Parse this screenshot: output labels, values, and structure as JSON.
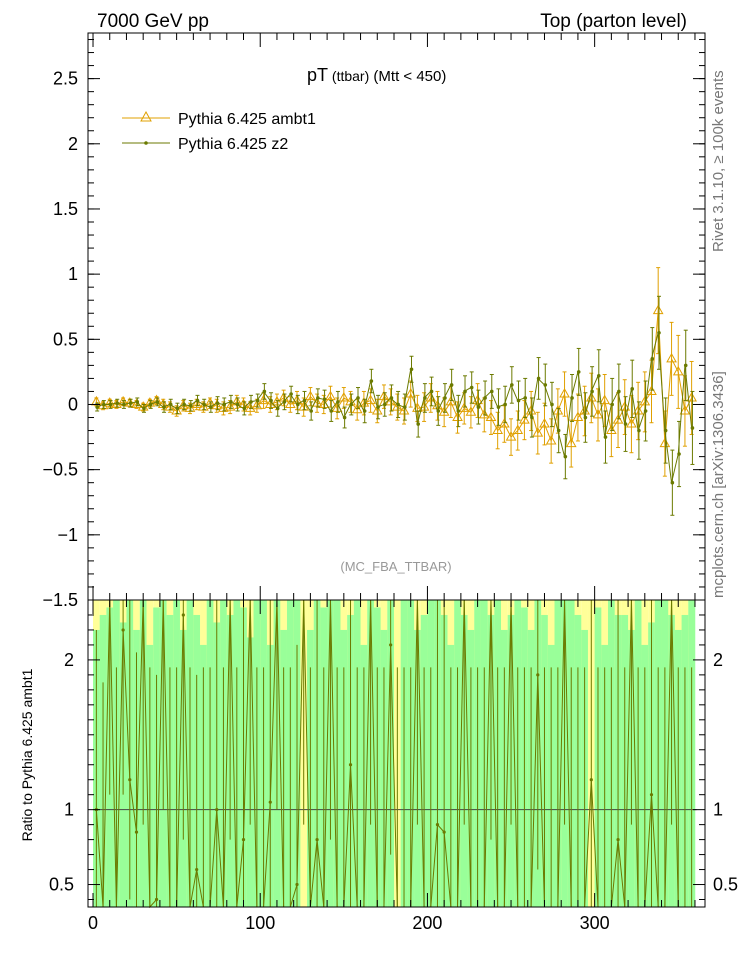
{
  "header": {
    "left": "7000 GeV pp",
    "right": "Top (parton level)"
  },
  "side": {
    "rivet": "Rivet 3.1.10, ≥ 100k events",
    "mcplots": "mcplots.cern.ch [arXiv:1306.3436]"
  },
  "title": {
    "main": "pT",
    "sub1": " (ttbar)",
    "sub2": " (Mtt < 450)"
  },
  "analysis": "(MC_FBA_TTBAR)",
  "ratio_ylabel": "Ratio to Pythia 6.425 ambt1",
  "colors": {
    "ambt1": "#e0a000",
    "z2": "#6b7a00",
    "band_green": "#99ff99",
    "band_yellow": "#ffff99",
    "axis": "#000000"
  },
  "chart_data": {
    "type": "line",
    "xlim": [
      -3,
      366
    ],
    "main": {
      "ylim": [
        -1.5,
        2.85
      ],
      "yticks": [
        -1.5,
        -1,
        -0.5,
        0,
        0.5,
        1,
        1.5,
        2,
        2.5
      ],
      "yticklabels": [
        "−1.5",
        "−1",
        "−0.5",
        "0",
        "0.5",
        "1",
        "1.5",
        "2",
        "2.5"
      ]
    },
    "ratio": {
      "ylim": [
        0.35,
        2.4
      ],
      "yticks": [
        0.5,
        1,
        2
      ],
      "yticklabels": [
        "0.5",
        "1",
        "2"
      ]
    },
    "xticks": [
      0,
      100,
      200,
      300
    ],
    "xticklabels": [
      "0",
      "100",
      "200",
      "300"
    ],
    "legend": [
      {
        "name": "Pythia 6.425 ambt1",
        "marker": "triangle"
      },
      {
        "name": "Pythia 6.425 z2",
        "marker": "dot"
      }
    ],
    "x": [
      2,
      6,
      10,
      14,
      18,
      22,
      26,
      30,
      34,
      38,
      42,
      46,
      50,
      54,
      58,
      62,
      66,
      70,
      74,
      78,
      82,
      86,
      90,
      94,
      98,
      102,
      106,
      110,
      114,
      118,
      122,
      126,
      130,
      134,
      138,
      142,
      146,
      150,
      154,
      158,
      162,
      166,
      170,
      174,
      178,
      182,
      186,
      190,
      194,
      198,
      202,
      206,
      210,
      214,
      218,
      222,
      226,
      230,
      234,
      238,
      242,
      246,
      250,
      254,
      258,
      262,
      266,
      270,
      274,
      278,
      282,
      286,
      290,
      294,
      298,
      302,
      306,
      310,
      314,
      318,
      322,
      326,
      330,
      334,
      338,
      342,
      346,
      350,
      354,
      358
    ],
    "series": [
      {
        "name": "Pythia 6.425 ambt1",
        "values": [
          0.02,
          -0.01,
          0.01,
          0.0,
          0.02,
          0.01,
          0.0,
          -0.02,
          0.01,
          0.03,
          0.0,
          -0.02,
          -0.05,
          -0.01,
          -0.03,
          0.0,
          -0.02,
          0.01,
          -0.01,
          -0.03,
          -0.02,
          0.02,
          0.0,
          -0.03,
          -0.01,
          0.03,
          0.0,
          0.02,
          0.05,
          0.0,
          0.03,
          -0.02,
          0.06,
          0.01,
          0.0,
          0.06,
          -0.03,
          0.05,
          0.02,
          -0.04,
          0.01,
          0.03,
          -0.05,
          0.06,
          0.02,
          -0.02,
          -0.05,
          0.08,
          -0.03,
          -0.02,
          0.05,
          -0.01,
          -0.06,
          0.02,
          -0.1,
          -0.03,
          -0.06,
          0.03,
          -0.08,
          -0.1,
          -0.2,
          -0.15,
          -0.25,
          -0.2,
          -0.12,
          -0.05,
          -0.22,
          -0.15,
          -0.28,
          -0.05,
          0.08,
          -0.3,
          -0.1,
          -0.05,
          0.05,
          -0.08,
          0.03,
          -0.2,
          -0.12,
          -0.02,
          -0.15,
          -0.05,
          0.02,
          0.1,
          0.72,
          -0.3,
          0.35,
          0.25,
          -0.05,
          0.05
        ],
        "errors": [
          0.03,
          0.03,
          0.03,
          0.03,
          0.03,
          0.03,
          0.03,
          0.03,
          0.03,
          0.03,
          0.04,
          0.04,
          0.04,
          0.04,
          0.04,
          0.04,
          0.04,
          0.04,
          0.05,
          0.05,
          0.05,
          0.05,
          0.05,
          0.05,
          0.05,
          0.06,
          0.06,
          0.06,
          0.06,
          0.06,
          0.07,
          0.07,
          0.07,
          0.07,
          0.07,
          0.08,
          0.08,
          0.08,
          0.08,
          0.08,
          0.09,
          0.09,
          0.09,
          0.09,
          0.1,
          0.1,
          0.1,
          0.1,
          0.1,
          0.11,
          0.11,
          0.11,
          0.11,
          0.12,
          0.12,
          0.12,
          0.12,
          0.13,
          0.13,
          0.13,
          0.14,
          0.14,
          0.14,
          0.15,
          0.15,
          0.15,
          0.16,
          0.16,
          0.17,
          0.17,
          0.17,
          0.18,
          0.18,
          0.19,
          0.19,
          0.2,
          0.2,
          0.2,
          0.21,
          0.21,
          0.22,
          0.22,
          0.23,
          0.24,
          0.33,
          0.25,
          0.28,
          0.28,
          0.27,
          0.28
        ]
      },
      {
        "name": "Pythia 6.425 z2",
        "values": [
          -0.02,
          0.0,
          0.0,
          0.01,
          0.0,
          0.01,
          0.02,
          -0.03,
          0.0,
          0.02,
          -0.02,
          0.0,
          -0.03,
          0.0,
          -0.01,
          0.03,
          0.0,
          -0.02,
          0.01,
          0.0,
          0.02,
          0.0,
          -0.03,
          0.02,
          0.03,
          0.1,
          0.03,
          -0.03,
          0.02,
          0.08,
          0.0,
          0.03,
          -0.05,
          0.05,
          0.04,
          -0.05,
          0.02,
          -0.1,
          0.0,
          0.05,
          -0.05,
          0.18,
          -0.02,
          0.0,
          0.05,
          0.0,
          -0.02,
          0.27,
          -0.15,
          0.05,
          0.1,
          -0.05,
          0.05,
          0.15,
          -0.05,
          0.1,
          0.13,
          -0.02,
          0.05,
          0.1,
          -0.02,
          0.0,
          0.15,
          0.03,
          0.05,
          -0.1,
          0.2,
          0.15,
          0.0,
          -0.2,
          -0.4,
          0.05,
          0.25,
          -0.1,
          0.1,
          0.22,
          -0.25,
          0.0,
          0.1,
          -0.15,
          0.12,
          -0.2,
          -0.05,
          0.35,
          0.55,
          -0.2,
          -0.6,
          -0.38,
          0.3,
          -0.18
        ],
        "errors": [
          0.03,
          0.03,
          0.03,
          0.03,
          0.03,
          0.03,
          0.03,
          0.03,
          0.03,
          0.03,
          0.04,
          0.04,
          0.04,
          0.04,
          0.04,
          0.04,
          0.04,
          0.04,
          0.05,
          0.05,
          0.05,
          0.05,
          0.05,
          0.05,
          0.05,
          0.06,
          0.06,
          0.06,
          0.06,
          0.06,
          0.07,
          0.07,
          0.07,
          0.07,
          0.07,
          0.08,
          0.08,
          0.08,
          0.08,
          0.08,
          0.09,
          0.09,
          0.09,
          0.09,
          0.1,
          0.1,
          0.1,
          0.1,
          0.1,
          0.11,
          0.11,
          0.11,
          0.11,
          0.12,
          0.12,
          0.12,
          0.12,
          0.13,
          0.13,
          0.13,
          0.14,
          0.14,
          0.14,
          0.15,
          0.15,
          0.15,
          0.16,
          0.16,
          0.17,
          0.17,
          0.17,
          0.18,
          0.18,
          0.19,
          0.19,
          0.2,
          0.2,
          0.2,
          0.21,
          0.21,
          0.22,
          0.22,
          0.23,
          0.24,
          0.28,
          0.25,
          0.25,
          0.25,
          0.27,
          0.28
        ]
      }
    ],
    "ratio_band": {
      "green_bottom": 0.35,
      "green_top": [
        2.2,
        2.3,
        2.35,
        2.4,
        2.25,
        2.4,
        2.2,
        2.4,
        2.1,
        2.35,
        2.4,
        2.3,
        2.4,
        2.2,
        2.4,
        2.3,
        2.1,
        2.4,
        2.25,
        2.4,
        2.3,
        2.4,
        2.35,
        2.15,
        2.4,
        2.4,
        2.1,
        2.4,
        2.2,
        2.4,
        2.4,
        2.3,
        2.2,
        2.4,
        2.35,
        2.4,
        2.4,
        2.2,
        2.3,
        2.4,
        2.1,
        2.4,
        2.35,
        2.2,
        2.4,
        2.3,
        2.4,
        2.4,
        2.2,
        2.3,
        2.4,
        2.4,
        2.3,
        2.1,
        2.4,
        2.3,
        2.2,
        2.4,
        2.4,
        2.3,
        2.4,
        2.2,
        2.3,
        2.4,
        2.35,
        2.2,
        2.4,
        2.3,
        2.1,
        2.4,
        2.4,
        2.4,
        2.3,
        2.2,
        2.4,
        2.35,
        2.1,
        2.4,
        2.3,
        2.3,
        2.2,
        2.4,
        2.1,
        2.25,
        2.4,
        2.4,
        2.3,
        2.2,
        2.3,
        2.4
      ],
      "yellow_top": [
        2.4,
        2.4,
        2.4,
        2.4,
        2.4,
        2.4,
        2.4,
        2.4,
        2.4,
        2.4,
        2.4,
        2.4,
        2.4,
        2.4,
        2.4,
        2.4,
        2.4,
        2.4,
        2.4,
        2.4,
        2.4,
        2.4,
        2.4,
        2.4,
        2.4,
        2.4,
        2.4,
        2.4,
        2.4,
        2.4,
        2.4,
        2.4,
        2.4,
        2.4,
        2.4,
        2.4,
        2.4,
        2.4,
        2.4,
        2.4,
        2.4,
        2.4,
        2.4,
        2.4,
        2.4,
        2.4,
        2.4,
        2.4,
        2.4,
        2.4,
        2.4,
        2.4,
        2.4,
        2.4,
        2.4,
        2.4,
        2.4,
        2.4,
        2.4,
        2.4,
        2.4,
        2.4,
        2.4,
        2.4,
        2.4,
        2.4,
        2.4,
        2.4,
        2.4,
        2.4,
        2.4,
        2.4,
        2.4,
        2.4,
        2.4,
        2.4,
        2.4,
        2.4,
        2.4,
        2.4,
        2.4,
        2.4,
        2.4,
        2.4,
        2.4,
        2.4,
        2.4,
        2.4,
        2.4,
        2.4
      ],
      "gaps": [
        126,
        182,
        298
      ]
    },
    "ratio_z2": {
      "values": [
        1.0,
        0.35,
        2.4,
        0.35,
        2.2,
        1.2,
        0.85,
        2.4,
        0.35,
        0.4,
        2.4,
        0.35,
        0.35,
        2.3,
        0.35,
        0.6,
        0.35,
        0.35,
        1.0,
        0.35,
        2.4,
        0.35,
        0.8,
        2.4,
        0.35,
        0.35,
        1.05,
        2.4,
        0.35,
        0.35,
        0.5,
        2.4,
        0.35,
        0.8,
        0.35,
        2.4,
        0.35,
        0.35,
        1.3,
        0.35,
        0.35,
        2.4,
        0.35,
        0.35,
        2.1,
        0.35,
        0.35,
        0.35,
        2.4,
        0.35,
        0.35,
        0.9,
        0.85,
        0.35,
        0.35,
        2.4,
        0.35,
        0.35,
        0.35,
        2.4,
        0.35,
        0.35,
        2.4,
        0.35,
        0.35,
        0.35,
        1.9,
        0.35,
        0.35,
        0.35,
        2.4,
        0.35,
        0.35,
        0.35,
        1.2,
        0.35,
        0.35,
        0.35,
        0.8,
        0.35,
        2.4,
        0.35,
        0.35,
        1.1,
        0.35,
        0.35,
        2.4,
        0.35,
        0.35,
        0.35
      ],
      "err_lo": [
        0.65,
        0.0,
        1.3,
        0.0,
        1.1,
        0.8,
        0.5,
        1.5,
        0.0,
        0.05,
        1.4,
        0.0,
        0.0,
        1.5,
        0.0,
        0.25,
        0.0,
        0.0,
        0.65,
        0.0,
        1.6,
        0.0,
        0.45,
        1.5,
        0.0,
        0.0,
        0.7,
        1.4,
        0.0,
        0.0,
        0.15,
        1.5,
        0.0,
        0.45,
        0.0,
        1.6,
        0.0,
        0.0,
        0.95,
        0.0,
        0.0,
        1.5,
        0.0,
        0.0,
        1.4,
        0.0,
        0.0,
        0.0,
        1.5,
        0.0,
        0.0,
        0.55,
        0.5,
        0.0,
        0.0,
        1.5,
        0.0,
        0.0,
        0.0,
        1.6,
        0.0,
        0.0,
        1.5,
        0.0,
        0.0,
        0.0,
        1.3,
        0.0,
        0.0,
        0.0,
        1.5,
        0.0,
        0.0,
        0.0,
        0.85,
        0.0,
        0.0,
        0.0,
        0.45,
        0.0,
        1.5,
        0.0,
        0.0,
        0.75,
        0.0,
        0.0,
        1.5,
        0.0,
        0.0,
        0.0
      ],
      "err_hi": [
        1.2,
        1.5,
        0.0,
        1.6,
        0.2,
        1.2,
        1.2,
        0.0,
        1.6,
        1.5,
        0.0,
        1.6,
        1.6,
        0.1,
        1.6,
        1.3,
        1.6,
        1.6,
        1.4,
        1.6,
        0.0,
        1.6,
        1.6,
        0.0,
        1.6,
        1.6,
        1.35,
        0.0,
        1.6,
        1.6,
        1.6,
        0.0,
        1.6,
        1.6,
        1.6,
        0.0,
        1.6,
        1.6,
        1.1,
        1.6,
        1.6,
        0.0,
        1.6,
        1.6,
        0.3,
        1.6,
        1.6,
        1.6,
        0.0,
        1.6,
        1.6,
        1.5,
        1.55,
        1.6,
        1.6,
        0.0,
        1.6,
        1.6,
        1.6,
        0.0,
        1.6,
        1.6,
        0.0,
        1.6,
        1.6,
        1.6,
        0.5,
        1.6,
        1.6,
        1.6,
        0.0,
        1.6,
        1.6,
        1.6,
        1.2,
        1.6,
        1.6,
        1.6,
        1.6,
        1.6,
        0.0,
        1.6,
        1.6,
        1.3,
        1.6,
        1.6,
        0.0,
        1.6,
        1.6,
        1.6
      ]
    }
  }
}
